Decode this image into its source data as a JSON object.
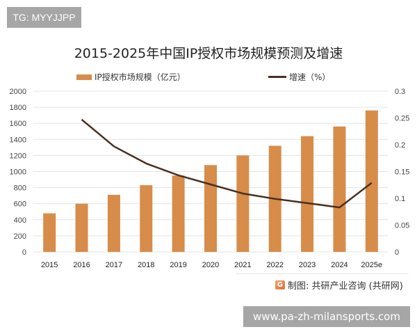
{
  "overlay": {
    "tag": "TG: MYYJJPP",
    "watermark_url": "www.pa-zh-milansports.com"
  },
  "chart_data": {
    "type": "bar+line",
    "title": "2015-2025年中国IP授权市场规模预测及增速",
    "categories": [
      "2015",
      "2016",
      "2017",
      "2018",
      "2019",
      "2020",
      "2021",
      "2022",
      "2023",
      "2024",
      "2025e"
    ],
    "series": [
      {
        "name": "IP授权市场规模（亿元）",
        "type": "bar",
        "axis": "left",
        "color": "#d78c4a",
        "values": [
          480,
          600,
          710,
          830,
          950,
          1080,
          1200,
          1320,
          1440,
          1560,
          1760
        ]
      },
      {
        "name": "增速（%）",
        "type": "line",
        "axis": "right",
        "color": "#4a2f20",
        "values": [
          null,
          0.247,
          0.197,
          0.165,
          0.143,
          0.126,
          0.109,
          0.099,
          0.091,
          0.083,
          0.129
        ]
      }
    ],
    "y_left": {
      "min": 0,
      "max": 2000,
      "ticks": [
        "0",
        "200",
        "400",
        "600",
        "800",
        "1000",
        "1200",
        "1400",
        "1600",
        "1800",
        "2000"
      ]
    },
    "y_right": {
      "min": 0,
      "max": 0.3,
      "ticks": [
        "0",
        "0.05",
        "0.1",
        "0.15",
        "0.2",
        "0.25",
        "0.3"
      ]
    },
    "grid": true,
    "legend": "top",
    "source": "制图: 共研产业咨询 (共研网)",
    "source_icon": "gongyan-logo-icon"
  }
}
